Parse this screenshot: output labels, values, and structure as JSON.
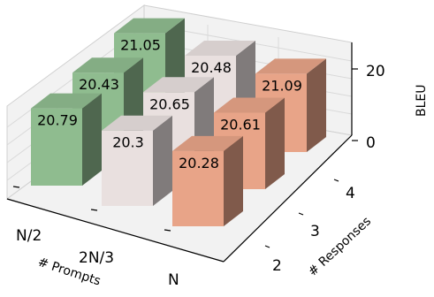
{
  "chart_data": {
    "type": "bar3d",
    "x_axis": {
      "label": "# Prompts",
      "categories": [
        "N/2",
        "2N/3",
        "N"
      ]
    },
    "y_axis": {
      "label": "# Responses",
      "categories": [
        "2",
        "3",
        "4"
      ]
    },
    "z_axis": {
      "label": "BLEU",
      "ticks": [
        "0",
        "20"
      ],
      "zlim": [
        0,
        22
      ]
    },
    "values": [
      {
        "prompts": "N/2",
        "responses": "2",
        "value": "20.79",
        "color": "#8fbc8f"
      },
      {
        "prompts": "N/2",
        "responses": "3",
        "value": "20.43",
        "color": "#8fbc8f"
      },
      {
        "prompts": "N/2",
        "responses": "4",
        "value": "21.05",
        "color": "#8fbc8f"
      },
      {
        "prompts": "2N/3",
        "responses": "2",
        "value": "20.3",
        "color": "#e9e0df"
      },
      {
        "prompts": "2N/3",
        "responses": "3",
        "value": "20.65",
        "color": "#e9e0df"
      },
      {
        "prompts": "2N/3",
        "responses": "4",
        "value": "20.48",
        "color": "#e9e0df"
      },
      {
        "prompts": "N",
        "responses": "2",
        "value": "20.28",
        "color": "#e8a488"
      },
      {
        "prompts": "N",
        "responses": "3",
        "value": "20.61",
        "color": "#e8a488"
      },
      {
        "prompts": "N",
        "responses": "4",
        "value": "21.09",
        "color": "#e8a488"
      }
    ]
  }
}
